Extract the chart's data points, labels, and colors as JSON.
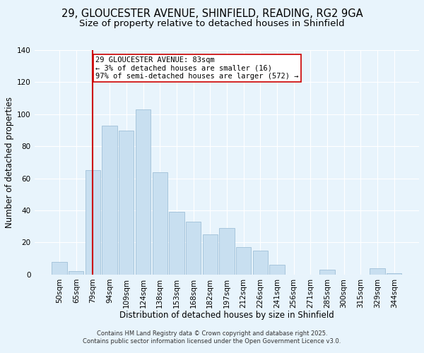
{
  "title": "29, GLOUCESTER AVENUE, SHINFIELD, READING, RG2 9GA",
  "subtitle": "Size of property relative to detached houses in Shinfield",
  "xlabel": "Distribution of detached houses by size in Shinfield",
  "ylabel": "Number of detached properties",
  "bar_labels": [
    "50sqm",
    "65sqm",
    "79sqm",
    "94sqm",
    "109sqm",
    "124sqm",
    "138sqm",
    "153sqm",
    "168sqm",
    "182sqm",
    "197sqm",
    "212sqm",
    "226sqm",
    "241sqm",
    "256sqm",
    "271sqm",
    "285sqm",
    "300sqm",
    "315sqm",
    "329sqm",
    "344sqm"
  ],
  "bar_values": [
    8,
    2,
    65,
    93,
    90,
    103,
    64,
    39,
    33,
    25,
    29,
    17,
    15,
    6,
    0,
    0,
    3,
    0,
    0,
    4,
    1
  ],
  "bar_color": "#c8dff0",
  "bar_edge_color": "#a0c0d8",
  "vline_x": 2,
  "vline_color": "#cc0000",
  "annotation_title": "29 GLOUCESTER AVENUE: 83sqm",
  "annotation_line1": "← 3% of detached houses are smaller (16)",
  "annotation_line2": "97% of semi-detached houses are larger (572) →",
  "annotation_box_color": "#ffffff",
  "annotation_box_edge": "#cc0000",
  "ylim": [
    0,
    140
  ],
  "yticks": [
    0,
    20,
    40,
    60,
    80,
    100,
    120,
    140
  ],
  "background_color": "#e8f4fc",
  "grid_color": "#ffffff",
  "footer_line1": "Contains HM Land Registry data © Crown copyright and database right 2025.",
  "footer_line2": "Contains public sector information licensed under the Open Government Licence v3.0.",
  "title_fontsize": 10.5,
  "subtitle_fontsize": 9.5,
  "axis_label_fontsize": 8.5,
  "tick_fontsize": 7.5,
  "annotation_fontsize": 7.5,
  "footer_fontsize": 6.0
}
